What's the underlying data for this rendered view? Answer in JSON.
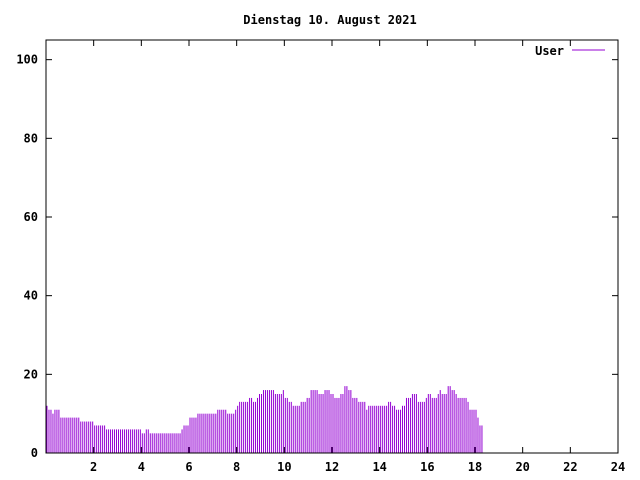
{
  "chart_data": {
    "type": "bar",
    "title": "Dienstag 10. August 2021",
    "xlabel": "",
    "ylabel": "",
    "xlim": [
      0,
      24
    ],
    "ylim": [
      0,
      105
    ],
    "x_ticks": [
      2,
      4,
      6,
      8,
      10,
      12,
      14,
      16,
      18,
      20,
      22,
      24
    ],
    "y_ticks": [
      0,
      20,
      40,
      60,
      80,
      100
    ],
    "grid": false,
    "legend_position": "top-right",
    "colors": {
      "series": "#9400d3",
      "axis": "#000000",
      "background": "#ffffff"
    },
    "series": [
      {
        "name": "User",
        "step_minutes": 5,
        "values": [
          12,
          11,
          11,
          10,
          11,
          11,
          11,
          9,
          9,
          9,
          9,
          9,
          9,
          9,
          9,
          9,
          9,
          8,
          8,
          8,
          8,
          8,
          8,
          8,
          7,
          7,
          7,
          7,
          7,
          7,
          6,
          6,
          6,
          6,
          6,
          6,
          6,
          6,
          6,
          6,
          6,
          6,
          6,
          6,
          6,
          6,
          6,
          6,
          5,
          5,
          6,
          6,
          5,
          5,
          5,
          5,
          5,
          5,
          5,
          5,
          5,
          5,
          5,
          5,
          5,
          5,
          5,
          5,
          6,
          7,
          7,
          7,
          9,
          9,
          9,
          9,
          10,
          10,
          10,
          10,
          10,
          10,
          10,
          10,
          10,
          10,
          11,
          11,
          11,
          11,
          11,
          10,
          10,
          10,
          10,
          11,
          12,
          13,
          13,
          13,
          13,
          13,
          14,
          14,
          13,
          13,
          14,
          15,
          15,
          16,
          16,
          16,
          16,
          16,
          16,
          15,
          15,
          15,
          15,
          16,
          14,
          14,
          13,
          13,
          12,
          12,
          12,
          12,
          13,
          13,
          13,
          14,
          14,
          16,
          16,
          16,
          16,
          15,
          15,
          15,
          16,
          16,
          16,
          15,
          15,
          14,
          14,
          14,
          15,
          15,
          17,
          17,
          16,
          16,
          14,
          14,
          14,
          13,
          13,
          13,
          13,
          11,
          12,
          12,
          12,
          12,
          12,
          12,
          12,
          12,
          12,
          12,
          13,
          13,
          12,
          12,
          11,
          11,
          11,
          12,
          12,
          14,
          14,
          14,
          15,
          15,
          15,
          13,
          13,
          13,
          13,
          14,
          15,
          15,
          14,
          14,
          14,
          15,
          16,
          15,
          15,
          15,
          17,
          17,
          16,
          16,
          15,
          14,
          14,
          14,
          14,
          14,
          13,
          11,
          11,
          11,
          11,
          9,
          7,
          7
        ]
      }
    ]
  }
}
